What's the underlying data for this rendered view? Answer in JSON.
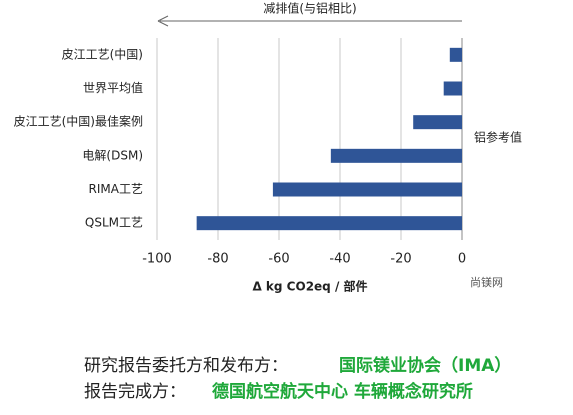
{
  "chart_data": {
    "type": "bar",
    "orientation": "horizontal",
    "categories": [
      "皮江工艺(中国)",
      "世界平均值",
      "皮江工艺(中国)最佳案例",
      "电解(DSM)",
      "RIMA工艺",
      "QSLM工艺"
    ],
    "values": [
      -4,
      -6,
      -16,
      -43,
      -62,
      -87
    ],
    "color": "#2f5597",
    "xlim": [
      -100,
      0
    ],
    "xticks": [
      -100,
      -80,
      -60,
      -40,
      -20,
      0
    ],
    "grid": true,
    "x_label": "Δ kg CO2eq / 部件",
    "top_annotation": "减排值(与铝相比)",
    "reference_annotation": "铝参考值"
  },
  "watermark": "尚镁网",
  "footer": [
    {
      "label": "研究报告委托方和发布方：",
      "value": "国际镁业协会（IMA）"
    },
    {
      "label": "报告完成方：",
      "value": "德国航空航天中心 车辆概念研究所"
    }
  ]
}
